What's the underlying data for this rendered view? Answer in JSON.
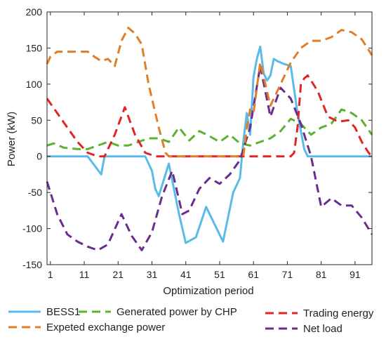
{
  "chart_data": {
    "type": "line",
    "title": "",
    "xlabel": "Optimization period",
    "ylabel": "Power (kW)",
    "xlim": [
      0,
      96
    ],
    "ylim": [
      -150,
      200
    ],
    "xticks": [
      1,
      11,
      21,
      31,
      41,
      51,
      61,
      71,
      81,
      91
    ],
    "yticks": [
      -150,
      -100,
      -50,
      0,
      50,
      100,
      150,
      200
    ],
    "grid": false,
    "legend_position": "below",
    "series": [
      {
        "name": "BESS1",
        "color": "#5ABBE8",
        "dash": "solid",
        "x": [
          0,
          12,
          16,
          17,
          29,
          31,
          32,
          33,
          36,
          39,
          41,
          44,
          47,
          52,
          55,
          57,
          58,
          59,
          60,
          61,
          62,
          63,
          64,
          65,
          66,
          67,
          68,
          70,
          72,
          74,
          75,
          76,
          77,
          78,
          79,
          96
        ],
        "y": [
          0,
          0,
          -25,
          0,
          0,
          -20,
          -45,
          -55,
          -10,
          -80,
          -120,
          -112,
          -70,
          -118,
          -50,
          -30,
          20,
          60,
          30,
          110,
          135,
          152,
          115,
          105,
          112,
          135,
          132,
          128,
          125,
          60,
          35,
          10,
          0,
          0,
          0,
          0
        ]
      },
      {
        "name": "Generated power by CHP",
        "color": "#5BB231",
        "dash": "dashed",
        "x": [
          0,
          2,
          5,
          9,
          12,
          15,
          18,
          21,
          24,
          27,
          30,
          33,
          36,
          39,
          42,
          45,
          48,
          51,
          54,
          57,
          60,
          63,
          66,
          69,
          72,
          75,
          78,
          81,
          84,
          87,
          90,
          93,
          96
        ],
        "y": [
          15,
          18,
          12,
          10,
          10,
          15,
          20,
          15,
          15,
          20,
          25,
          25,
          20,
          40,
          22,
          35,
          28,
          20,
          30,
          18,
          15,
          20,
          25,
          35,
          52,
          45,
          30,
          40,
          45,
          65,
          60,
          50,
          30
        ]
      },
      {
        "name": "Trading energy",
        "color": "#E02527",
        "dash": "dashed",
        "x": [
          0,
          3,
          6,
          9,
          12,
          15,
          17,
          20,
          23,
          26,
          29,
          32,
          35,
          40,
          50,
          60,
          70,
          71,
          72,
          73,
          74,
          75,
          76,
          77,
          78,
          80,
          83,
          86,
          89,
          91,
          93,
          95,
          96
        ],
        "y": [
          80,
          60,
          40,
          20,
          5,
          0,
          0,
          30,
          68,
          30,
          5,
          0,
          0,
          0,
          0,
          0,
          0,
          0,
          0,
          5,
          40,
          100,
          108,
          112,
          105,
          90,
          55,
          48,
          50,
          40,
          20,
          5,
          0
        ]
      },
      {
        "name": "Net load",
        "color": "#6A2C8F",
        "dash": "dashed",
        "x": [
          0,
          3,
          6,
          9,
          12,
          15,
          18,
          22,
          25,
          28,
          31,
          34,
          37,
          40,
          42,
          45,
          48,
          51,
          54,
          57,
          60,
          63,
          66,
          69,
          72,
          75,
          78,
          81,
          84,
          87,
          90,
          93,
          96
        ],
        "y": [
          -35,
          -80,
          -108,
          -118,
          -125,
          -130,
          -122,
          -80,
          -110,
          -130,
          -105,
          -55,
          -20,
          -80,
          -75,
          -45,
          -30,
          -38,
          -25,
          -5,
          40,
          125,
          55,
          95,
          80,
          45,
          0,
          -70,
          -58,
          -68,
          -68,
          -85,
          -108
        ]
      },
      {
        "name": "Expeted exchange power",
        "color": "#E07D27",
        "dash": "dashed",
        "x": [
          0,
          1,
          3,
          6,
          9,
          12,
          14,
          16,
          18,
          20,
          22,
          24,
          26,
          28,
          30,
          33,
          35,
          36,
          37,
          40,
          50,
          57,
          58,
          59,
          60,
          61,
          63,
          66,
          69,
          72,
          75,
          78,
          81,
          84,
          87,
          90,
          93,
          96
        ],
        "y": [
          128,
          138,
          145,
          145,
          145,
          145,
          138,
          132,
          135,
          125,
          160,
          178,
          170,
          155,
          100,
          40,
          5,
          0,
          0,
          0,
          0,
          0,
          0,
          40,
          65,
          60,
          130,
          70,
          100,
          130,
          150,
          160,
          160,
          165,
          175,
          172,
          162,
          140
        ]
      }
    ]
  },
  "legend": {
    "entries": [
      {
        "label": "BESS1",
        "color": "#5ABBE8",
        "dash": "solid"
      },
      {
        "label": "Generated power by CHP",
        "color": "#5BB231",
        "dash": "dashed"
      },
      {
        "label": "Trading energy",
        "color": "#E02527",
        "dash": "dashed"
      },
      {
        "label": "Expeted exchange power",
        "color": "#E07D27",
        "dash": "dashed"
      },
      {
        "label": "Net load",
        "color": "#6A2C8F",
        "dash": "dashed"
      }
    ]
  }
}
